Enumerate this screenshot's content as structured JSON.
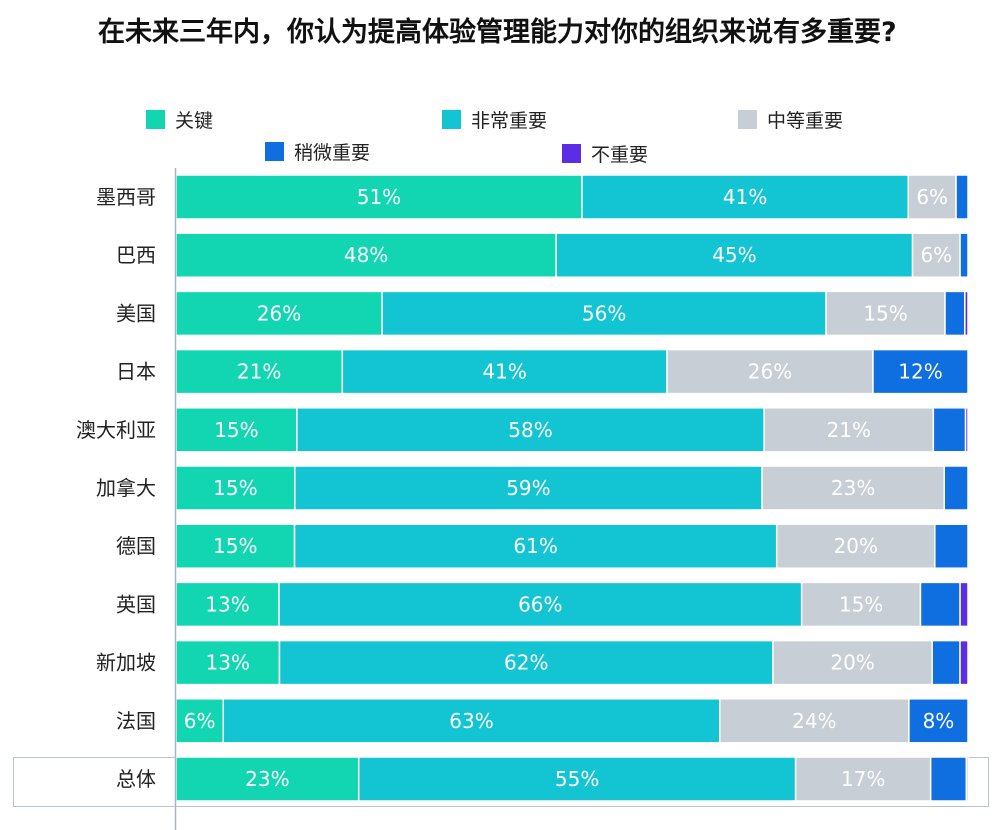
{
  "title": "在未来三年内，你认为提高体验管理能力对你的组织来说有多重要?",
  "colors": {
    "critical": "#12d6b1",
    "very": "#13c5d3",
    "moderate": "#c7ced6",
    "slight": "#0f6fe0",
    "not": "#5b2ee6",
    "axis": "#a9b4c0"
  },
  "legend": [
    {
      "label": "关键",
      "color": "#12d6b1"
    },
    {
      "label": "非常重要",
      "color": "#13c5d3"
    },
    {
      "label": "中等重要",
      "color": "#c7ced6"
    },
    {
      "label": "稍微重要",
      "color": "#0f6fe0"
    },
    {
      "label": "不重要",
      "color": "#5b2ee6"
    }
  ],
  "chart_data": {
    "type": "bar",
    "orientation": "horizontal",
    "stacked": true,
    "xlim": [
      0,
      100
    ],
    "categories": [
      "墨西哥",
      "巴西",
      "美国",
      "日本",
      "澳大利亚",
      "加拿大",
      "德国",
      "英国",
      "新加坡",
      "法国",
      "总体"
    ],
    "series": [
      {
        "name": "关键",
        "values": [
          51,
          48,
          26,
          21,
          15,
          15,
          15,
          13,
          13,
          6,
          23
        ]
      },
      {
        "name": "非常重要",
        "values": [
          41,
          45,
          56,
          41,
          58,
          59,
          61,
          66,
          62,
          63,
          55
        ]
      },
      {
        "name": "中等重要",
        "values": [
          6,
          6,
          15,
          26,
          21,
          23,
          20,
          15,
          20,
          24,
          17
        ]
      },
      {
        "name": "稍微重要",
        "values": [
          1.5,
          1,
          2.5,
          12,
          4,
          3,
          4.2,
          5,
          3.5,
          7.5,
          4.5
        ]
      },
      {
        "name": "不重要",
        "values": [
          0,
          0,
          0.4,
          0,
          0.3,
          0,
          0,
          1,
          1,
          0,
          0.2
        ]
      }
    ],
    "labels": [
      [
        "51%",
        "41%",
        "6%",
        "",
        ""
      ],
      [
        "48%",
        "45%",
        "6%",
        "",
        ""
      ],
      [
        "26%",
        "56%",
        "15%",
        "",
        ""
      ],
      [
        "21%",
        "41%",
        "26%",
        "12%",
        ""
      ],
      [
        "15%",
        "58%",
        "21%",
        "",
        ""
      ],
      [
        "15%",
        "59%",
        "23%",
        "",
        ""
      ],
      [
        "15%",
        "61%",
        "20%",
        "",
        ""
      ],
      [
        "13%",
        "66%",
        "15%",
        "",
        ""
      ],
      [
        "13%",
        "62%",
        "20%",
        "",
        ""
      ],
      [
        "6%",
        "63%",
        "24%",
        "8%",
        ""
      ],
      [
        "23%",
        "55%",
        "17%",
        "",
        ""
      ]
    ]
  }
}
